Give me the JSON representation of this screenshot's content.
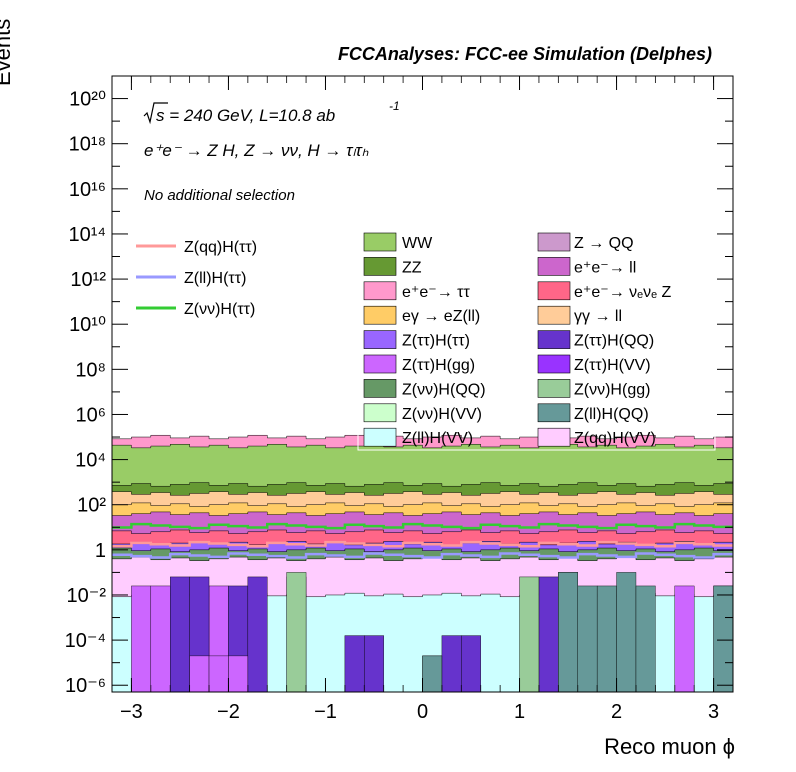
{
  "header": {
    "title": "FCCAnalyses: FCC-ee Simulation (Delphes)"
  },
  "annotations": {
    "sqrt_s": "s = 240 GeV, L=10.8 ab",
    "lumi_exp": "-1",
    "process": "e⁺e⁻ → Z H, Z → νν, H → τₗτₕ",
    "selection": "No additional selection"
  },
  "chart_data": {
    "type": "area",
    "title": "FCCAnalyses: FCC-ee Simulation (Delphes)",
    "xlabel": "Reco muon ϕ",
    "ylabel": "Events",
    "xlim": [
      -3.2,
      3.2
    ],
    "ylim_exp": [
      -6.3,
      21
    ],
    "log_y": true,
    "bins": 32,
    "x_ticks": [
      "−3",
      "−2",
      "−1",
      "0",
      "1",
      "2",
      "3"
    ],
    "y_ticks": [
      "10⁻⁶",
      "10⁻⁴",
      "10⁻²",
      "1",
      "10²",
      "10⁴",
      "10⁶",
      "10⁸",
      "10¹⁰",
      "10¹²",
      "10¹⁴",
      "10¹⁶",
      "10¹⁸",
      "10²⁰"
    ],
    "stack_levels_log10": [
      {
        "name": "Z(ll)H(VV)",
        "color": "#ccffff",
        "level": -2.0
      },
      {
        "name": "Z(qq)H(VV)",
        "color": "#ffccff",
        "level": -0.4
      },
      {
        "name": "Z(νν)H(QQ)",
        "color": "#669966",
        "level": 0.0
      },
      {
        "name": "Z(ττ)H(ττ)",
        "color": "#9966ff",
        "level": 0.3
      },
      {
        "name": "e⁺e⁻→ νₑνₑ Z",
        "color": "#ff6688",
        "level": 0.8
      },
      {
        "name": "e⁺e⁻→ ℓℓ",
        "color": "#cc66cc",
        "level": 1.6
      },
      {
        "name": "eγ → eZ(ll)",
        "color": "#ffcc66",
        "level": 2.0
      },
      {
        "name": "γγ → ll",
        "color": "#ffcc99",
        "level": 2.5
      },
      {
        "name": "ZZ",
        "color": "#669933",
        "level": 2.9
      },
      {
        "name": "WW",
        "color": "#99cc66",
        "level": 4.6
      },
      {
        "name": "e⁺e⁻→ ττ",
        "color": "#ff99cc",
        "level": 5.0
      }
    ],
    "lines_log10": [
      {
        "name": "Z(qq)H(ττ)",
        "color": "#ff9999",
        "level": 0.25
      },
      {
        "name": "Z(ll)H(ττ)",
        "color": "#9999ff",
        "level": -0.25
      },
      {
        "name": "Z(νν)H(ττ)",
        "color": "#33cc33",
        "level": 1.05
      }
    ],
    "bottom_bins": [
      {
        "color": "#cc66ff",
        "heights": [
          -6.3,
          -1.6,
          -1.6,
          -6.3,
          -6.3,
          -1.6,
          -6.3,
          -6.3,
          -6.3,
          -6.3,
          -6.3,
          -6.3,
          -6.3,
          -6.3,
          -6.3,
          -6.3,
          -6.3,
          -6.3,
          -6.3,
          -6.3,
          -6.3,
          -6.3,
          -6.3,
          -6.3,
          -6.3,
          -6.3,
          -6.3,
          -6.3,
          -6.3,
          -1.6,
          -6.3,
          -6.3
        ]
      },
      {
        "color": "#6633cc",
        "heights": [
          -6.3,
          -6.3,
          -6.3,
          -1.2,
          -1.2,
          -6.3,
          -1.6,
          -1.2,
          -6.3,
          -1.2,
          -6.3,
          -6.3,
          -3.8,
          -3.8,
          -6.3,
          -6.3,
          -4.7,
          -3.8,
          -3.8,
          -6.3,
          -6.3,
          -6.3,
          -1.2,
          -1.0,
          -6.3,
          -6.3,
          -6.3,
          -6.3,
          -6.3,
          -6.3,
          -6.3,
          -1.6
        ]
      },
      {
        "color": "#99cc99",
        "heights": [
          -6.3,
          -6.3,
          -6.3,
          -6.3,
          -6.3,
          -6.3,
          -6.3,
          -6.3,
          -6.3,
          -1.0,
          -6.3,
          -6.3,
          -6.3,
          -6.3,
          -6.3,
          -6.3,
          -6.3,
          -6.3,
          -6.3,
          -6.3,
          -6.3,
          -1.2,
          -6.3,
          -6.3,
          -6.3,
          -6.3,
          -6.3,
          -6.3,
          -6.3,
          -6.3,
          -6.3,
          -6.3
        ]
      },
      {
        "color": "#669999",
        "heights": [
          -6.3,
          -6.3,
          -6.3,
          -6.3,
          -6.3,
          -6.3,
          -6.3,
          -6.3,
          -6.3,
          -6.3,
          -6.3,
          -6.3,
          -6.3,
          -6.3,
          -6.3,
          -6.3,
          -4.7,
          -6.3,
          -6.3,
          -6.3,
          -6.3,
          -6.3,
          -6.3,
          -1.0,
          -1.6,
          -1.6,
          -1.0,
          -1.6,
          -6.3,
          -6.3,
          -6.3,
          -1.6
        ]
      },
      {
        "color": "#cc66ff",
        "heights": [
          -6.3,
          -6.3,
          -6.3,
          -6.3,
          -4.7,
          -4.7,
          -4.7,
          -6.3,
          -6.3,
          -6.3,
          -6.3,
          -6.3,
          -6.3,
          -6.3,
          -6.3,
          -6.3,
          -6.3,
          -6.3,
          -6.3,
          -6.3,
          -6.3,
          -6.3,
          -6.3,
          -6.3,
          -6.3,
          -6.3,
          -6.3,
          -6.3,
          -6.3,
          -6.3,
          -6.3,
          -6.3
        ]
      }
    ],
    "legend_left": [
      {
        "label": "Z(qq)H(ττ)",
        "color": "#ff9999"
      },
      {
        "label": "Z(ll)H(ττ)",
        "color": "#9999ff"
      },
      {
        "label": "Z(νν)H(ττ)",
        "color": "#33cc33"
      }
    ],
    "legend_col1": [
      {
        "label": "WW",
        "color": "#99cc66"
      },
      {
        "label": "ZZ",
        "color": "#669933"
      },
      {
        "label": "e⁺e⁻→ ττ",
        "color": "#ff99cc"
      },
      {
        "label": "eγ → eZ(ll)",
        "color": "#ffcc66"
      },
      {
        "label": "Z(ττ)H(ττ)",
        "color": "#9966ff"
      },
      {
        "label": "Z(ττ)H(gg)",
        "color": "#cc66ff"
      },
      {
        "label": "Z(νν)H(QQ)",
        "color": "#669966"
      },
      {
        "label": "Z(νν)H(VV)",
        "color": "#ccffcc"
      },
      {
        "label": "Z(ll)H(VV)",
        "color": "#ccffff"
      }
    ],
    "legend_col2": [
      {
        "label": "Z → QQ",
        "color": "#cc99cc"
      },
      {
        "label": "e⁺e⁻→ ll",
        "color": "#cc66cc"
      },
      {
        "label": "e⁺e⁻→ νₑνₑ Z",
        "color": "#ff6688"
      },
      {
        "label": "γγ → ll",
        "color": "#ffcc99"
      },
      {
        "label": "Z(ττ)H(QQ)",
        "color": "#6633cc"
      },
      {
        "label": "Z(ττ)H(VV)",
        "color": "#9933ff"
      },
      {
        "label": "Z(νν)H(gg)",
        "color": "#99cc99"
      },
      {
        "label": "Z(ll)H(QQ)",
        "color": "#669999"
      },
      {
        "label": "Z(qq)H(VV)",
        "color": "#ffccff"
      }
    ]
  }
}
